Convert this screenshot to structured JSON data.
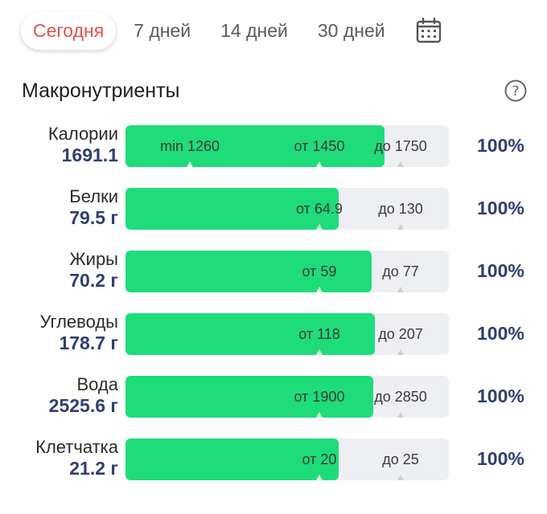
{
  "tabs": [
    {
      "label": "Сегодня",
      "active": true
    },
    {
      "label": "7 дней",
      "active": false
    },
    {
      "label": "14 дней",
      "active": false
    },
    {
      "label": "30 дней",
      "active": false
    }
  ],
  "title": "Макронутриенты",
  "icons": {
    "calendar": "calendar-icon",
    "help": "question-circle-icon"
  },
  "colors": {
    "fill": "#1fdc7a",
    "track": "#eeeff3",
    "value": "#2f3f6f",
    "active_tab": "#e5534b"
  },
  "nutrients": [
    {
      "name": "Калории",
      "value": "1691.1",
      "percent": "100%",
      "fill_fraction": 0.8,
      "marks": [
        {
          "label": "min 1260",
          "pos": 0.2
        },
        {
          "label": "от 1450",
          "pos": 0.6
        },
        {
          "label": "до 1750",
          "pos": 0.85
        }
      ]
    },
    {
      "name": "Белки",
      "value": "79.5 г",
      "percent": "100%",
      "fill_fraction": 0.66,
      "marks": [
        {
          "label": "от 64.9",
          "pos": 0.6
        },
        {
          "label": "до 130",
          "pos": 0.85
        }
      ]
    },
    {
      "name": "Жиры",
      "value": "70.2 г",
      "percent": "100%",
      "fill_fraction": 0.76,
      "marks": [
        {
          "label": "от 59",
          "pos": 0.6
        },
        {
          "label": "до 77",
          "pos": 0.85
        }
      ]
    },
    {
      "name": "Углеводы",
      "value": "178.7 г",
      "percent": "100%",
      "fill_fraction": 0.77,
      "marks": [
        {
          "label": "от 118",
          "pos": 0.6
        },
        {
          "label": "до 207",
          "pos": 0.85
        }
      ]
    },
    {
      "name": "Вода",
      "value": "2525.6 г",
      "percent": "100%",
      "fill_fraction": 0.765,
      "marks": [
        {
          "label": "от 1900",
          "pos": 0.6
        },
        {
          "label": "до 2850",
          "pos": 0.85
        }
      ]
    },
    {
      "name": "Клетчатка",
      "value": "21.2 г",
      "percent": "100%",
      "fill_fraction": 0.66,
      "marks": [
        {
          "label": "от 20",
          "pos": 0.6
        },
        {
          "label": "до 25",
          "pos": 0.85
        }
      ]
    }
  ]
}
